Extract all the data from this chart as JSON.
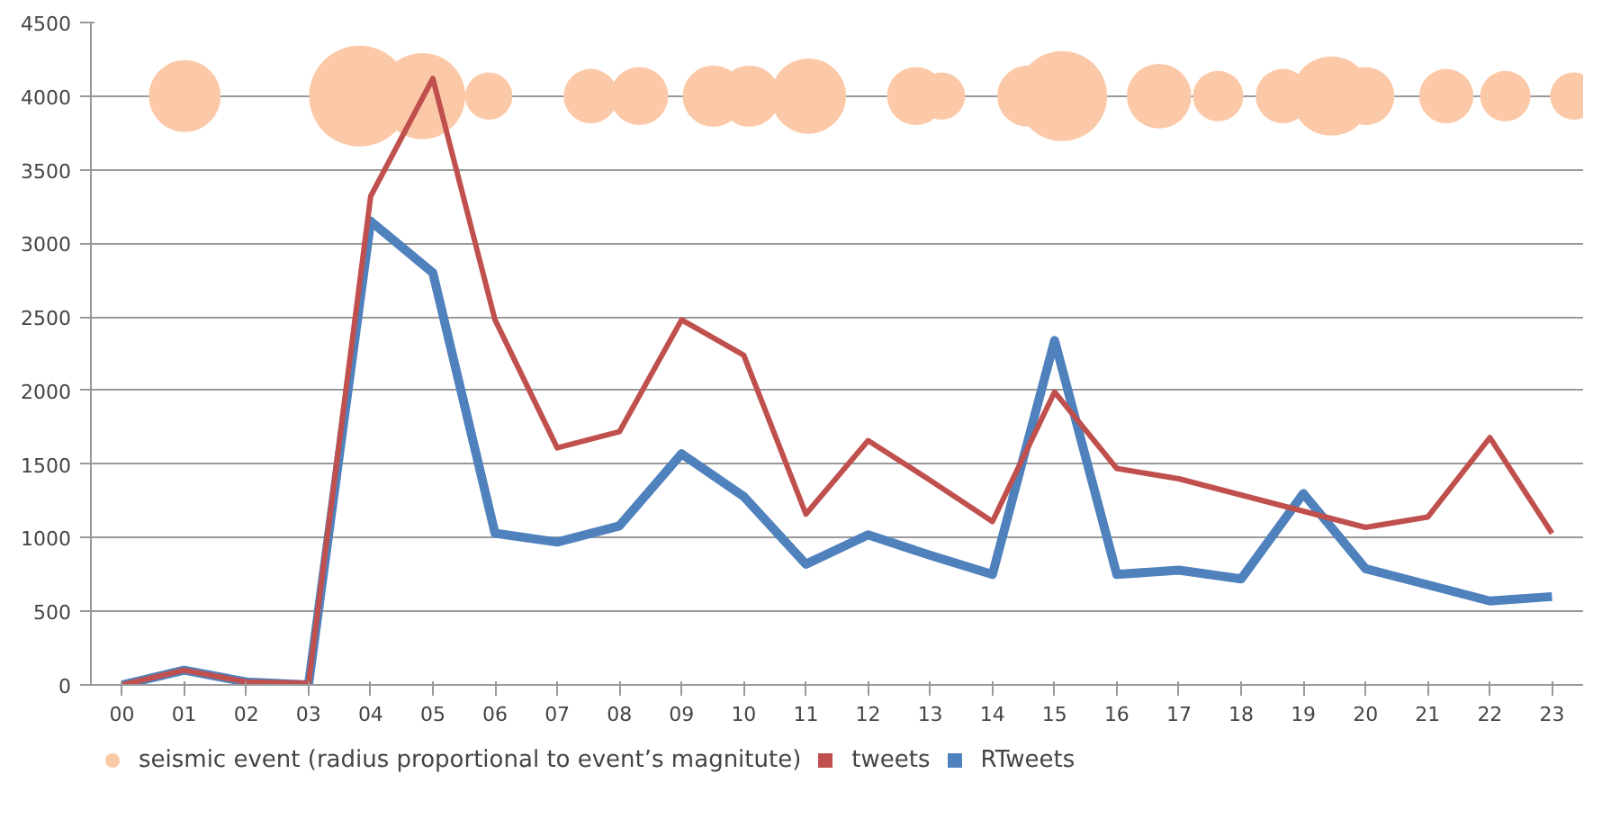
{
  "chart_data": {
    "type": "line",
    "x": [
      0,
      1,
      2,
      3,
      4,
      5,
      6,
      7,
      8,
      9,
      10,
      11,
      12,
      13,
      14,
      15,
      16,
      17,
      18,
      19,
      20,
      21,
      22,
      23
    ],
    "series": [
      {
        "name": "seismic event (radius proportional to event’s magnitute)",
        "type": "bubble",
        "color": "#fcc9a8",
        "x": [
          1.01,
          3.82,
          4.83,
          5.9,
          7.54,
          8.32,
          9.51,
          10.09,
          11.04,
          12.77,
          13.18,
          14.57,
          15.12,
          16.68,
          17.63,
          18.67,
          19.45,
          20.0,
          21.3,
          22.25,
          23.35
        ],
        "values": [
          4000,
          4000,
          4000,
          4000,
          4000,
          4000,
          4000,
          4000,
          4000,
          4000,
          4000,
          4000,
          4000,
          4000,
          4000,
          4000,
          4000,
          4000,
          4000,
          4000,
          4000
        ],
        "sizes": [
          0.51,
          1,
          0.73,
          0.22,
          0.29,
          0.33,
          0.37,
          0.37,
          0.56,
          0.33,
          0.22,
          0.37,
          0.8,
          0.41,
          0.25,
          0.29,
          0.62,
          0.33,
          0.29,
          0.25,
          0.22
        ]
      },
      {
        "name": "tweets",
        "color": "#c0504d",
        "values": [
          0,
          100,
          20,
          10,
          3320,
          4120,
          2480,
          1610,
          1720,
          2480,
          2240,
          1160,
          1660,
          1390,
          1110,
          1990,
          1470,
          1400,
          1290,
          1180,
          1070,
          1140,
          1680,
          1030
        ]
      },
      {
        "name": "RTweets",
        "color": "#4f81bd",
        "values": [
          0,
          100,
          20,
          0,
          3150,
          2800,
          1030,
          970,
          1080,
          1570,
          1280,
          820,
          1020,
          880,
          750,
          2340,
          750,
          780,
          720,
          1300,
          790,
          680,
          570,
          600
        ]
      }
    ],
    "xlim": [
      -0.5,
      23.5
    ],
    "xticks": [
      {
        "value": 0,
        "label": "00"
      },
      {
        "value": 1,
        "label": "01"
      },
      {
        "value": 2,
        "label": "02"
      },
      {
        "value": 3,
        "label": "03"
      },
      {
        "value": 4,
        "label": "04"
      },
      {
        "value": 5,
        "label": "05"
      },
      {
        "value": 6,
        "label": "06"
      },
      {
        "value": 7,
        "label": "07"
      },
      {
        "value": 8,
        "label": "08"
      },
      {
        "value": 9,
        "label": "09"
      },
      10,
      11,
      12,
      13,
      14,
      15,
      16,
      17,
      18,
      19,
      20,
      21,
      22,
      23
    ],
    "ylim": [
      0,
      4500
    ],
    "yticks": [
      0,
      500,
      1000,
      1500,
      2000,
      2500,
      3000,
      3500,
      4000,
      4500
    ],
    "grid": "y",
    "legend": "bottom",
    "line_style": "solid"
  }
}
